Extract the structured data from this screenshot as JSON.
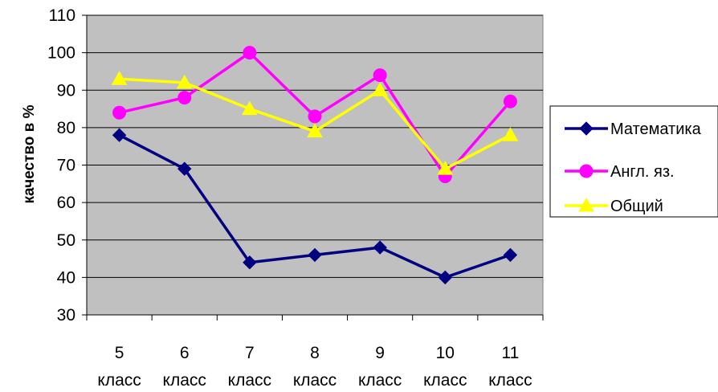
{
  "chart_data": {
    "type": "line",
    "title": "",
    "xlabel": "",
    "ylabel": "качество в %",
    "ylim": [
      30,
      110
    ],
    "yticks": [
      30,
      40,
      50,
      60,
      70,
      80,
      90,
      100,
      110
    ],
    "grid": true,
    "legend_position": "right",
    "categories": [
      [
        "5",
        "класс"
      ],
      [
        "6",
        "класс"
      ],
      [
        "7",
        "класс"
      ],
      [
        "8",
        "класс"
      ],
      [
        "9",
        "класс"
      ],
      [
        "10",
        "класс"
      ],
      [
        "11",
        "класс"
      ]
    ],
    "series": [
      {
        "name": "Математика",
        "color": "#000080",
        "marker": "diamond",
        "values": [
          78,
          69,
          44,
          46,
          48,
          40,
          46
        ]
      },
      {
        "name": "Англ. яз.",
        "color": "#ff00ff",
        "marker": "circle",
        "values": [
          84,
          88,
          100,
          83,
          94,
          67,
          87
        ]
      },
      {
        "name": "Общий",
        "color": "#ffff00",
        "marker": "triangle",
        "values": [
          93,
          92,
          85,
          79,
          90,
          69,
          78
        ]
      }
    ],
    "plot_background": "#c0c0c0"
  }
}
